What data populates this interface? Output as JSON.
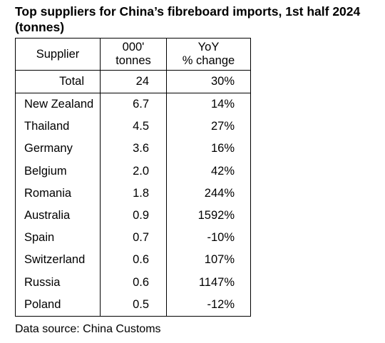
{
  "title": "Top suppliers for China’s fibreboard imports, 1st half 2024 (tonnes)",
  "table": {
    "headers": {
      "supplier": "Supplier",
      "volume_line1": "000'",
      "volume_line2": "tonnes",
      "change_line1": "YoY",
      "change_line2": "% change"
    },
    "total": {
      "label": "Total",
      "volume": "24",
      "change": "30%"
    },
    "rows": [
      {
        "supplier": "New Zealand",
        "volume": "6.7",
        "change": "14%"
      },
      {
        "supplier": "Thailand",
        "volume": "4.5",
        "change": "27%"
      },
      {
        "supplier": "Germany",
        "volume": "3.6",
        "change": "16%"
      },
      {
        "supplier": "Belgium",
        "volume": "2.0",
        "change": "42%"
      },
      {
        "supplier": "Romania",
        "volume": "1.8",
        "change": "244%"
      },
      {
        "supplier": "Australia",
        "volume": "0.9",
        "change": "1592%"
      },
      {
        "supplier": "Spain",
        "volume": "0.7",
        "change": "-10%"
      },
      {
        "supplier": "Switzerland",
        "volume": "0.6",
        "change": "107%"
      },
      {
        "supplier": "Russia",
        "volume": "0.6",
        "change": "1147%"
      },
      {
        "supplier": "Poland",
        "volume": "0.5",
        "change": "-12%"
      }
    ]
  },
  "source": "Data source: China Customs"
}
